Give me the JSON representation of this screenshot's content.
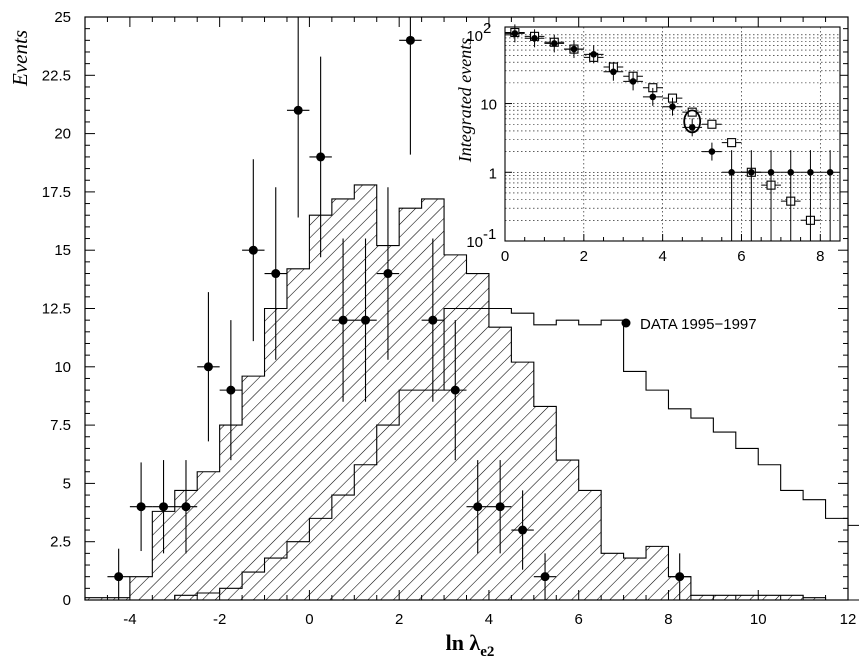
{
  "chart_data": [
    {
      "type": "histogram",
      "xlabel_main": "ln λ",
      "xlabel_sub": "e2",
      "ylabel": "Events",
      "xlim": [
        -5,
        12
      ],
      "ylim": [
        0,
        25
      ],
      "x_ticks": [
        -4,
        -2,
        0,
        2,
        4,
        6,
        8,
        10,
        12
      ],
      "y_ticks": [
        0,
        2.5,
        5,
        7.5,
        10,
        12.5,
        15,
        17.5,
        20,
        22.5,
        25
      ],
      "y_tick_labels": [
        "0",
        "2.5",
        "5",
        "7.5",
        "10",
        "12.5",
        "15",
        "17.5",
        "20",
        "22.5",
        "25"
      ],
      "bin_width": 0.5,
      "series": [
        {
          "type": "hatched-histogram",
          "bins_start": -5,
          "values": [
            0.1,
            0.1,
            1.0,
            3.8,
            4.7,
            5.5,
            7.5,
            9.6,
            12.5,
            14.2,
            16.5,
            17.2,
            17.8,
            15.2,
            16.8,
            17.2,
            14.8,
            14.0,
            11.7,
            10.2,
            8.3,
            6.0,
            4.7,
            2.0,
            1.8,
            2.3,
            1.0,
            0.2,
            0.2,
            0.2,
            0.2,
            0.2,
            0.1,
            0,
            0
          ]
        },
        {
          "type": "outline-histogram",
          "bins_start": -3,
          "values": [
            0.2,
            0.3,
            0.5,
            1.2,
            1.8,
            2.5,
            3.5,
            4.5,
            5.8,
            7.5,
            9.0,
            9.0,
            12.5,
            12.5,
            12.5,
            12.3,
            11.8,
            12.0,
            11.8,
            12.0,
            9.8,
            9.0,
            8.2,
            7.8,
            7.2,
            6.5,
            5.8,
            4.7,
            4.3,
            3.5,
            3.2,
            2.5,
            1.8,
            1.2,
            1.0,
            0.7,
            0.5,
            0.3,
            0.3,
            0.2,
            0,
            0
          ]
        },
        {
          "name": "DATA 1995-1997",
          "type": "points",
          "points": [
            {
              "x": -4.25,
              "y": 1,
              "err": 1.2
            },
            {
              "x": -3.75,
              "y": 4,
              "err": 1.9
            },
            {
              "x": -3.25,
              "y": 4,
              "err": 2.0
            },
            {
              "x": -2.75,
              "y": 4,
              "err": 2.0
            },
            {
              "x": -2.25,
              "y": 10,
              "err": 3.2
            },
            {
              "x": -1.75,
              "y": 9,
              "err": 3.0
            },
            {
              "x": -1.25,
              "y": 15,
              "err": 3.9
            },
            {
              "x": -0.75,
              "y": 14,
              "err": 3.7
            },
            {
              "x": -0.25,
              "y": 21,
              "err": 4.6
            },
            {
              "x": 0.25,
              "y": 19,
              "err": 4.3
            },
            {
              "x": 0.75,
              "y": 12,
              "err": 3.5
            },
            {
              "x": 1.25,
              "y": 12,
              "err": 3.5
            },
            {
              "x": 1.75,
              "y": 14,
              "err": 3.7
            },
            {
              "x": 2.25,
              "y": 24,
              "err": 4.9
            },
            {
              "x": 2.75,
              "y": 12,
              "err": 3.5
            },
            {
              "x": 3.25,
              "y": 9,
              "err": 3.0
            },
            {
              "x": 3.75,
              "y": 4,
              "err": 2.0
            },
            {
              "x": 4.25,
              "y": 4,
              "err": 2.0
            },
            {
              "x": 4.75,
              "y": 3,
              "err": 1.7
            },
            {
              "x": 5.25,
              "y": 1,
              "err": 1.0
            },
            {
              "x": 8.25,
              "y": 1,
              "err": 1.0
            }
          ]
        }
      ],
      "legend": {
        "position": "center-right",
        "entries": [
          "DATA 1995−1997"
        ]
      }
    },
    {
      "type": "scatter",
      "inset": true,
      "ylabel": "Integrated events",
      "yscale": "log",
      "xlim": [
        0,
        8.5
      ],
      "ylim": [
        0.1,
        130
      ],
      "grid": true,
      "x_ticks": [
        0,
        2,
        4,
        6,
        8
      ],
      "y_ticks_labels": [
        {
          "value": 100,
          "label": "10",
          "sup": "2"
        },
        {
          "value": 10,
          "label": "10",
          "sup": ""
        },
        {
          "value": 1,
          "label": "1",
          "sup": ""
        },
        {
          "value": 0.1,
          "label": "10",
          "sup": "-1"
        }
      ],
      "series": [
        {
          "type": "filled-points",
          "points": [
            {
              "x": 0.25,
              "y": 105
            },
            {
              "x": 0.75,
              "y": 89
            },
            {
              "x": 1.25,
              "y": 75
            },
            {
              "x": 1.75,
              "y": 62
            },
            {
              "x": 2.25,
              "y": 52
            },
            {
              "x": 2.75,
              "y": 29
            },
            {
              "x": 3.25,
              "y": 21
            },
            {
              "x": 3.75,
              "y": 12.5
            },
            {
              "x": 4.25,
              "y": 9
            },
            {
              "x": 4.75,
              "y": 4.5
            },
            {
              "x": 5.25,
              "y": 2
            },
            {
              "x": 5.75,
              "y": 1
            },
            {
              "x": 6.25,
              "y": 1
            },
            {
              "x": 6.75,
              "y": 1
            },
            {
              "x": 7.25,
              "y": 1
            },
            {
              "x": 7.75,
              "y": 1
            },
            {
              "x": 8.25,
              "y": 1
            }
          ]
        },
        {
          "type": "open-squares",
          "points": [
            {
              "x": 0.25,
              "y": 108
            },
            {
              "x": 0.75,
              "y": 95
            },
            {
              "x": 1.25,
              "y": 78
            },
            {
              "x": 1.75,
              "y": 62
            },
            {
              "x": 2.25,
              "y": 47
            },
            {
              "x": 2.75,
              "y": 34
            },
            {
              "x": 3.25,
              "y": 25
            },
            {
              "x": 3.75,
              "y": 17
            },
            {
              "x": 4.25,
              "y": 12
            },
            {
              "x": 4.75,
              "y": 7.5
            },
            {
              "x": 5.25,
              "y": 5
            },
            {
              "x": 5.75,
              "y": 2.7
            },
            {
              "x": 6.25,
              "y": 1.0
            },
            {
              "x": 6.75,
              "y": 0.65
            },
            {
              "x": 7.25,
              "y": 0.38
            },
            {
              "x": 7.75,
              "y": 0.2
            }
          ]
        }
      ],
      "highlight_point": {
        "x": 4.75,
        "y": 5.5
      }
    }
  ],
  "colors": {
    "ink": "#000000",
    "background": "#ffffff"
  }
}
